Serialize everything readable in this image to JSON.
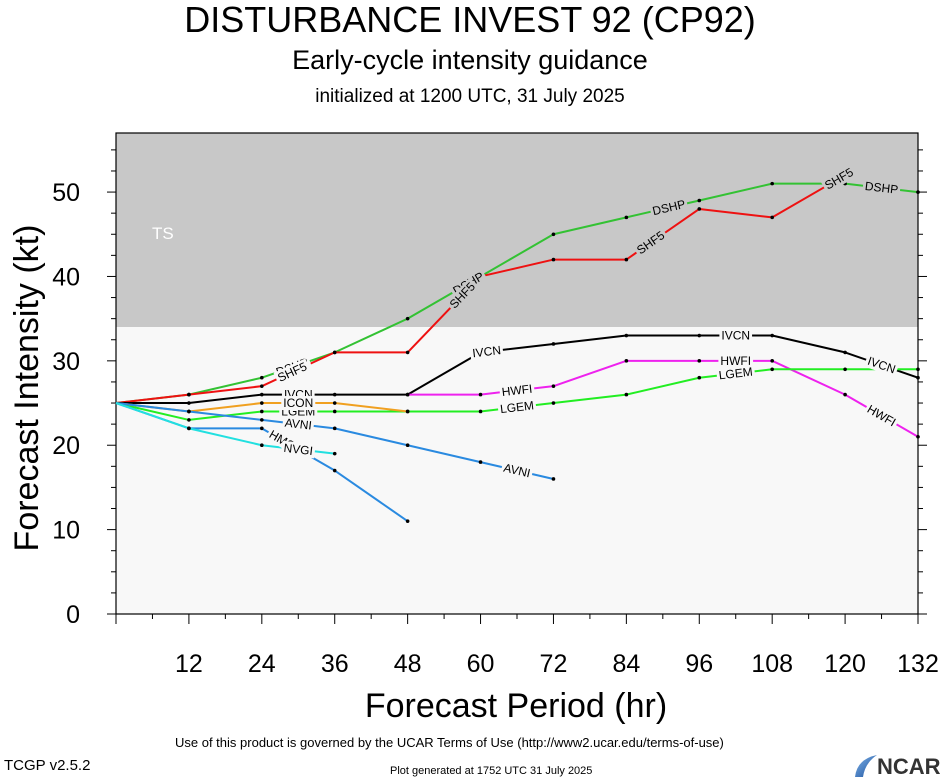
{
  "header": {
    "title": "DISTURBANCE INVEST 92 (CP92)",
    "subtitle": "Early-cycle intensity guidance",
    "init": "initialized at 1200 UTC, 31 July 2025"
  },
  "footer": {
    "terms": "Use of this product is governed by the UCAR Terms of Use (http://www2.ucar.edu/terms-of-use)",
    "version": "TCGP v2.5.2",
    "generated": "Plot generated at 1752 UTC   31 July 2025",
    "logo_text": "NCAR"
  },
  "chart_data": {
    "type": "line",
    "title": "DISTURBANCE INVEST 92 (CP92)",
    "xlabel": "Forecast Period (hr)",
    "ylabel": "Forecast Intensity (kt)",
    "xlim": [
      0,
      132
    ],
    "ylim": [
      0,
      57
    ],
    "xticks": [
      12,
      24,
      36,
      48,
      60,
      72,
      84,
      96,
      108,
      120,
      132
    ],
    "yticks": [
      0,
      10,
      20,
      30,
      40,
      50
    ],
    "bands": [
      {
        "label": "TS",
        "from": 34,
        "to": 57,
        "color": "#c8c8c8"
      },
      {
        "label": "",
        "from": 0,
        "to": 34,
        "color": "#f8f8f8"
      }
    ],
    "series": [
      {
        "name": "DSHP",
        "color": "#33c233",
        "x": [
          0,
          12,
          24,
          36,
          48,
          60,
          72,
          84,
          96,
          108,
          120,
          132
        ],
        "values": [
          25,
          26,
          28,
          31,
          35,
          40,
          45,
          47,
          49,
          51,
          51,
          50
        ],
        "labels": [
          {
            "x": 29,
            "text": "DSHP"
          },
          {
            "x": 58,
            "text": "DSHP"
          },
          {
            "x": 91,
            "text": "DSHP"
          },
          {
            "x": 126,
            "text": "DSHP"
          }
        ]
      },
      {
        "name": "SHF5",
        "color": "#ee1111",
        "x": [
          0,
          12,
          24,
          36,
          48,
          60,
          72,
          84,
          96,
          108,
          120
        ],
        "values": [
          25,
          26,
          27,
          31,
          31,
          40,
          42,
          42,
          48,
          47,
          52
        ],
        "labels": [
          {
            "x": 29,
            "text": "SHF5"
          },
          {
            "x": 57,
            "text": "SHF5"
          },
          {
            "x": 88,
            "text": "SHF5"
          },
          {
            "x": 119,
            "text": "SHF5"
          }
        ]
      },
      {
        "name": "IVCN",
        "color": "#000000",
        "x": [
          0,
          12,
          24,
          36,
          48,
          60,
          72,
          84,
          96,
          108,
          120,
          132
        ],
        "values": [
          25,
          25,
          26,
          26,
          26,
          31,
          32,
          33,
          33,
          33,
          31,
          28
        ],
        "labels": [
          {
            "x": 30,
            "text": "IVCN"
          },
          {
            "x": 61,
            "text": "IVCN"
          },
          {
            "x": 102,
            "text": "IVCN"
          },
          {
            "x": 126,
            "text": "IVCN"
          }
        ]
      },
      {
        "name": "HWFI",
        "color": "#ee22ee",
        "x": [
          48,
          60,
          72,
          84,
          96,
          108,
          120,
          132
        ],
        "values": [
          26,
          26,
          27,
          30,
          30,
          30,
          26,
          21
        ],
        "labels": [
          {
            "x": 66,
            "text": "HWFI"
          },
          {
            "x": 102,
            "text": "HWFI"
          },
          {
            "x": 126,
            "text": "HWFI"
          }
        ]
      },
      {
        "name": "LGEM",
        "color": "#22ee22",
        "x": [
          0,
          12,
          24,
          36,
          48,
          60,
          72,
          84,
          96,
          108,
          120,
          132
        ],
        "values": [
          25,
          23,
          24,
          24,
          24,
          24,
          25,
          26,
          28,
          29,
          29,
          29
        ],
        "labels": [
          {
            "x": 30,
            "text": "LGEM"
          },
          {
            "x": 66,
            "text": "LGEM"
          },
          {
            "x": 102,
            "text": "LGEM"
          }
        ]
      },
      {
        "name": "ICON",
        "color": "#f0a020",
        "x": [
          0,
          12,
          24,
          36,
          48
        ],
        "values": [
          25,
          24,
          25,
          25,
          24
        ],
        "labels": [
          {
            "x": 30,
            "text": "ICON"
          }
        ]
      },
      {
        "name": "AVNI",
        "color": "#2a8ae0",
        "x": [
          0,
          12,
          24,
          36,
          48,
          60,
          72
        ],
        "values": [
          25,
          24,
          23,
          22,
          20,
          18,
          16
        ],
        "labels": [
          {
            "x": 30,
            "text": "AVNI"
          },
          {
            "x": 66,
            "text": "AVNI"
          }
        ]
      },
      {
        "name": "HMON",
        "color": "#2a8ae0",
        "x": [
          0,
          12,
          24,
          36,
          48
        ],
        "values": [
          25,
          22,
          22,
          17,
          11
        ],
        "labels": [
          {
            "x": 28,
            "text": "HMON"
          }
        ]
      },
      {
        "name": "NVGI",
        "color": "#22e0e0",
        "x": [
          0,
          12,
          24,
          36
        ],
        "values": [
          25,
          22,
          20,
          19
        ],
        "labels": [
          {
            "x": 30,
            "text": "NVGI"
          }
        ]
      }
    ]
  }
}
